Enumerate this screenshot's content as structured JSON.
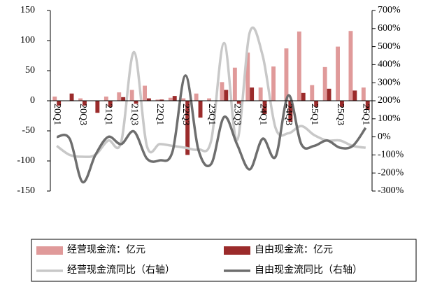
{
  "chart_data": {
    "type": "bar-line",
    "categories": [
      "20Q1",
      null,
      "20Q3",
      null,
      "21Q1",
      null,
      "21Q3",
      null,
      "22Q1",
      null,
      "22Q3",
      null,
      "23Q1",
      null,
      "23Q3",
      null,
      "24Q1",
      null,
      "24Q3",
      null,
      "25Q1",
      null,
      "25Q3",
      null,
      "26Q1"
    ],
    "series": [
      {
        "name": "经营现金流：亿元",
        "color": "#e09a9a",
        "kind": "bar",
        "values": [
          7,
          0,
          4,
          0,
          7,
          14,
          18,
          25,
          2,
          5,
          4,
          12,
          4,
          31,
          55,
          80,
          22,
          57,
          87,
          115,
          26,
          56,
          90,
          116,
          22
        ]
      },
      {
        "name": "自由现金流：亿元",
        "color": "#9b2b2b",
        "kind": "bar",
        "values": [
          -8,
          12,
          -8,
          -20,
          -10,
          6,
          -5,
          4,
          2,
          8,
          -90,
          -28,
          0,
          18,
          -5,
          22,
          -22,
          0,
          -35,
          13,
          -10,
          20,
          -10,
          17,
          -15
        ]
      },
      {
        "name": "经营现金流同比（右轴）",
        "color": "#c8c8c8",
        "kind": "line",
        "axis": "y2",
        "values": [
          -50,
          -100,
          -110,
          -100,
          -20,
          -30,
          470,
          -50,
          -40,
          -50,
          -60,
          -70,
          -20,
          520,
          -20,
          580,
          450,
          50,
          20,
          60,
          10,
          -20,
          -20,
          -50,
          -60
        ]
      },
      {
        "name": "自由现金流同比（右轴）",
        "color": "#6e6e6e",
        "kind": "line",
        "axis": "y2",
        "values": [
          0,
          -10,
          -250,
          -100,
          0,
          -40,
          30,
          -120,
          -130,
          -80,
          340,
          -70,
          -150,
          110,
          -40,
          -180,
          -10,
          -110,
          230,
          -40,
          -50,
          -20,
          -60,
          -50,
          50
        ]
      }
    ],
    "ylim": [
      -150,
      150
    ],
    "yticks": [
      -150,
      -100,
      -50,
      0,
      50,
      100,
      150
    ],
    "y2lim": [
      -300,
      700
    ],
    "y2ticks": [
      {
        "value": -300,
        "label": "-300%"
      },
      {
        "value": -200,
        "label": "-200%"
      },
      {
        "value": -100,
        "label": "-100%"
      },
      {
        "value": 0,
        "label": "0%"
      },
      {
        "value": 100,
        "label": "100%"
      },
      {
        "value": 200,
        "label": "200%"
      },
      {
        "value": 300,
        "label": "300%"
      },
      {
        "value": 400,
        "label": "400%"
      },
      {
        "value": 500,
        "label": "500%"
      },
      {
        "value": 600,
        "label": "600%"
      },
      {
        "value": 700,
        "label": "700%"
      }
    ]
  }
}
